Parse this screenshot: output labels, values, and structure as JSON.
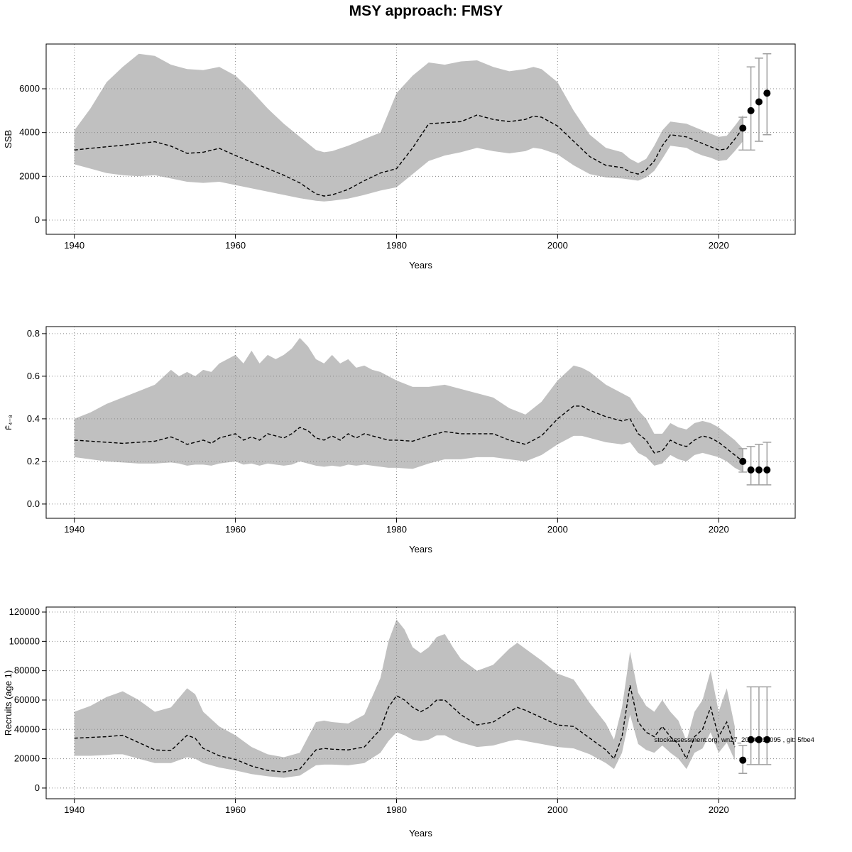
{
  "title": "MSY approach: FMSY",
  "colors": {
    "band": "#c0c0c0",
    "median_line": "#000000",
    "grid": "#888888",
    "error_bar": "#a0a0a0",
    "point": "#000000",
    "border": "#000000"
  },
  "chart_data": [
    {
      "id": "ssb",
      "type": "area",
      "title": "",
      "ylabel": "SSB",
      "xlabel": "Years",
      "xlim": [
        1936.5,
        2029.5
      ],
      "ylim": [
        -650,
        8045
      ],
      "grid": "dotted",
      "legend": "none",
      "xticks": [
        1940,
        1960,
        1980,
        2000,
        2020
      ],
      "xtick_labels": [
        "1940",
        "1960",
        "1980",
        "2000",
        "2020"
      ],
      "yticks": [
        0,
        2000,
        4000,
        6000
      ],
      "ytick_labels": [
        "0",
        "2000",
        "4000",
        "6000"
      ],
      "years": [
        1940,
        1942,
        1944,
        1946,
        1948,
        1950,
        1952,
        1954,
        1956,
        1958,
        1960,
        1962,
        1964,
        1966,
        1968,
        1970,
        1971,
        1972,
        1974,
        1976,
        1978,
        1980,
        1982,
        1984,
        1986,
        1988,
        1990,
        1992,
        1994,
        1996,
        1997,
        1998,
        2000,
        2002,
        2004,
        2006,
        2008,
        2009,
        2010,
        2011,
        2012,
        2013,
        2014,
        2015,
        2016,
        2017,
        2018,
        2019,
        2020,
        2021,
        2022,
        2023
      ],
      "median": [
        3200,
        3280,
        3350,
        3420,
        3500,
        3580,
        3380,
        3050,
        3100,
        3280,
        2950,
        2650,
        2350,
        2050,
        1700,
        1200,
        1100,
        1150,
        1400,
        1800,
        2150,
        2350,
        3300,
        4400,
        4450,
        4500,
        4800,
        4600,
        4500,
        4600,
        4750,
        4700,
        4300,
        3600,
        2900,
        2500,
        2400,
        2200,
        2100,
        2300,
        2700,
        3400,
        3900,
        3850,
        3800,
        3650,
        3500,
        3350,
        3200,
        3250,
        3700,
        4200
      ],
      "lo": [
        2550,
        2350,
        2150,
        2050,
        2000,
        2050,
        1900,
        1750,
        1700,
        1750,
        1600,
        1450,
        1300,
        1150,
        1000,
        880,
        850,
        880,
        980,
        1150,
        1350,
        1500,
        2100,
        2700,
        2950,
        3100,
        3300,
        3150,
        3050,
        3150,
        3300,
        3250,
        3000,
        2500,
        2100,
        1950,
        1900,
        1850,
        1800,
        1950,
        2250,
        2800,
        3400,
        3350,
        3300,
        3100,
        2950,
        2850,
        2700,
        2750,
        3150,
        3600
      ],
      "hi": [
        4100,
        5100,
        6300,
        7000,
        7600,
        7500,
        7100,
        6900,
        6850,
        7000,
        6600,
        5900,
        5100,
        4400,
        3800,
        3200,
        3100,
        3150,
        3400,
        3700,
        4000,
        5800,
        6600,
        7200,
        7100,
        7250,
        7300,
        7000,
        6800,
        6900,
        7000,
        6900,
        6300,
        5000,
        3900,
        3300,
        3100,
        2800,
        2600,
        2800,
        3400,
        4100,
        4500,
        4450,
        4400,
        4250,
        4100,
        3950,
        3800,
        3850,
        4300,
        4800
      ],
      "forecast": {
        "years": [
          2023,
          2024,
          2025,
          2026
        ],
        "values": [
          4200,
          5000,
          5400,
          5800
        ],
        "lo": [
          3200,
          3200,
          3600,
          3900
        ],
        "hi": [
          4700,
          7000,
          7400,
          7600
        ]
      }
    },
    {
      "id": "fbar",
      "type": "area",
      "title": "",
      "ylabel": "F̄₄₋₈",
      "xlabel": "Years",
      "xlim": [
        1936.5,
        2029.5
      ],
      "ylim": [
        -0.067,
        0.833
      ],
      "grid": "dotted",
      "legend": "none",
      "xticks": [
        1940,
        1960,
        1980,
        2000,
        2020
      ],
      "xtick_labels": [
        "1940",
        "1960",
        "1980",
        "2000",
        "2020"
      ],
      "yticks": [
        0,
        0.2,
        0.4,
        0.6,
        0.8
      ],
      "ytick_labels": [
        "0.0",
        "0.2",
        "0.4",
        "0.6",
        "0.8"
      ],
      "years": [
        1940,
        1942,
        1944,
        1946,
        1948,
        1950,
        1952,
        1953,
        1954,
        1955,
        1956,
        1957,
        1958,
        1960,
        1961,
        1962,
        1963,
        1964,
        1965,
        1966,
        1967,
        1968,
        1969,
        1970,
        1971,
        1972,
        1973,
        1974,
        1975,
        1976,
        1977,
        1978,
        1979,
        1980,
        1982,
        1984,
        1986,
        1988,
        1990,
        1992,
        1994,
        1996,
        1998,
        2000,
        2002,
        2003,
        2004,
        2006,
        2008,
        2009,
        2010,
        2011,
        2012,
        2013,
        2014,
        2015,
        2016,
        2017,
        2018,
        2019,
        2020,
        2021,
        2022,
        2023
      ],
      "median": [
        0.3,
        0.295,
        0.29,
        0.285,
        0.29,
        0.295,
        0.315,
        0.3,
        0.28,
        0.29,
        0.3,
        0.285,
        0.31,
        0.33,
        0.3,
        0.315,
        0.3,
        0.33,
        0.32,
        0.31,
        0.33,
        0.36,
        0.345,
        0.31,
        0.3,
        0.32,
        0.3,
        0.33,
        0.31,
        0.33,
        0.32,
        0.31,
        0.3,
        0.3,
        0.295,
        0.32,
        0.34,
        0.33,
        0.33,
        0.33,
        0.3,
        0.28,
        0.32,
        0.4,
        0.46,
        0.46,
        0.44,
        0.41,
        0.39,
        0.4,
        0.33,
        0.3,
        0.24,
        0.25,
        0.3,
        0.28,
        0.27,
        0.3,
        0.32,
        0.31,
        0.29,
        0.26,
        0.23,
        0.2
      ],
      "lo": [
        0.22,
        0.21,
        0.2,
        0.195,
        0.19,
        0.19,
        0.195,
        0.19,
        0.18,
        0.185,
        0.185,
        0.18,
        0.19,
        0.2,
        0.185,
        0.19,
        0.18,
        0.19,
        0.185,
        0.18,
        0.185,
        0.2,
        0.19,
        0.18,
        0.175,
        0.18,
        0.175,
        0.185,
        0.18,
        0.185,
        0.18,
        0.175,
        0.17,
        0.17,
        0.165,
        0.19,
        0.21,
        0.21,
        0.22,
        0.22,
        0.21,
        0.2,
        0.23,
        0.28,
        0.32,
        0.32,
        0.31,
        0.29,
        0.28,
        0.29,
        0.24,
        0.22,
        0.18,
        0.19,
        0.23,
        0.21,
        0.2,
        0.23,
        0.24,
        0.23,
        0.22,
        0.2,
        0.17,
        0.15
      ],
      "hi": [
        0.4,
        0.43,
        0.47,
        0.5,
        0.53,
        0.56,
        0.63,
        0.6,
        0.62,
        0.6,
        0.63,
        0.62,
        0.66,
        0.7,
        0.66,
        0.72,
        0.66,
        0.7,
        0.68,
        0.7,
        0.73,
        0.78,
        0.74,
        0.68,
        0.66,
        0.7,
        0.66,
        0.68,
        0.64,
        0.65,
        0.63,
        0.62,
        0.6,
        0.58,
        0.55,
        0.55,
        0.56,
        0.54,
        0.52,
        0.5,
        0.45,
        0.42,
        0.48,
        0.58,
        0.65,
        0.64,
        0.62,
        0.56,
        0.52,
        0.5,
        0.44,
        0.4,
        0.33,
        0.33,
        0.38,
        0.36,
        0.35,
        0.38,
        0.39,
        0.38,
        0.36,
        0.33,
        0.3,
        0.26
      ],
      "forecast": {
        "years": [
          2023,
          2024,
          2025,
          2026
        ],
        "values": [
          0.2,
          0.16,
          0.16,
          0.16
        ],
        "lo": [
          0.15,
          0.09,
          0.09,
          0.09
        ],
        "hi": [
          0.26,
          0.27,
          0.28,
          0.29
        ]
      }
    },
    {
      "id": "recruits",
      "type": "area",
      "title": "",
      "ylabel": "Recruits (age 1)",
      "xlabel": "Years",
      "xlim": [
        1936.5,
        2029.5
      ],
      "ylim": [
        -7300,
        123400
      ],
      "grid": "dotted",
      "legend": "none",
      "xticks": [
        1940,
        1960,
        1980,
        2000,
        2020
      ],
      "xtick_labels": [
        "1940",
        "1960",
        "1980",
        "2000",
        "2020"
      ],
      "yticks": [
        0,
        20000,
        40000,
        60000,
        80000,
        100000,
        120000
      ],
      "ytick_labels": [
        "0",
        "20000",
        "40000",
        "60000",
        "80000",
        "100000",
        "120000"
      ],
      "years": [
        1940,
        1942,
        1944,
        1945,
        1946,
        1948,
        1950,
        1952,
        1954,
        1955,
        1956,
        1958,
        1960,
        1962,
        1964,
        1966,
        1968,
        1970,
        1971,
        1972,
        1974,
        1976,
        1978,
        1979,
        1980,
        1981,
        1982,
        1983,
        1984,
        1985,
        1986,
        1987,
        1988,
        1990,
        1992,
        1994,
        1995,
        1996,
        1998,
        2000,
        2002,
        2004,
        2006,
        2007,
        2008,
        2009,
        2010,
        2011,
        2012,
        2013,
        2014,
        2015,
        2016,
        2017,
        2018,
        2019,
        2020,
        2021,
        2022
      ],
      "median": [
        34000,
        34500,
        35000,
        35500,
        36000,
        31000,
        26000,
        25500,
        36000,
        34000,
        27000,
        22000,
        19500,
        15000,
        12000,
        11000,
        13000,
        26000,
        27000,
        26500,
        26000,
        28000,
        40000,
        55000,
        63000,
        60000,
        55000,
        52000,
        55000,
        60000,
        60000,
        55000,
        50000,
        43000,
        45000,
        52000,
        55000,
        53000,
        48000,
        43000,
        42000,
        34000,
        26000,
        20000,
        35000,
        70000,
        45000,
        38000,
        35000,
        42000,
        35000,
        30000,
        20000,
        35000,
        40000,
        55000,
        35000,
        45000,
        28000
      ],
      "lo": [
        22000,
        22000,
        22500,
        23000,
        23000,
        20000,
        17000,
        17000,
        21000,
        20000,
        17000,
        14000,
        12000,
        9500,
        8000,
        7000,
        8500,
        15500,
        16000,
        16000,
        15500,
        17000,
        24000,
        32000,
        38000,
        36000,
        33000,
        32000,
        33000,
        36000,
        36000,
        33000,
        31000,
        28000,
        29000,
        32000,
        33000,
        32000,
        30000,
        28000,
        27000,
        23000,
        17000,
        13000,
        24000,
        50000,
        30000,
        26000,
        24000,
        29000,
        24000,
        20000,
        13000,
        24000,
        27000,
        38000,
        24000,
        31000,
        19000
      ],
      "hi": [
        52000,
        56000,
        62000,
        64000,
        66000,
        60000,
        52000,
        55000,
        68000,
        64000,
        52000,
        42000,
        36000,
        28000,
        23000,
        21000,
        24000,
        45000,
        46000,
        45000,
        44000,
        50000,
        75000,
        100000,
        115000,
        108000,
        96000,
        92000,
        96000,
        103000,
        105000,
        96000,
        88000,
        80000,
        84000,
        95000,
        99000,
        95000,
        87000,
        78000,
        74000,
        58000,
        44000,
        33000,
        55000,
        93000,
        65000,
        56000,
        52000,
        60000,
        52000,
        46000,
        32000,
        52000,
        60000,
        80000,
        52000,
        68000,
        42000
      ],
      "forecast": {
        "years": [
          2023,
          2024,
          2025,
          2026
        ],
        "values": [
          19000,
          33000,
          33000,
          33000
        ],
        "lo": [
          10000,
          16000,
          16000,
          16000
        ],
        "hi": [
          29000,
          69000,
          69000,
          69000
        ]
      },
      "annotation": {
        "text": "stockassessment.org, wn27_2024, r18095 , git: 5fbe4",
        "x": 2012,
        "y": 31500
      }
    }
  ]
}
